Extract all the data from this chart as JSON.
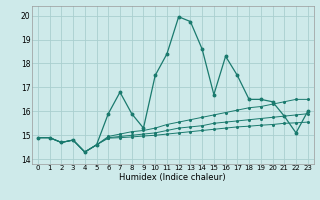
{
  "xlabel": "Humidex (Indice chaleur)",
  "bg_color": "#ceeaea",
  "grid_color": "#aacfcf",
  "line_color": "#1a7a6e",
  "xlim": [
    -0.5,
    23.5
  ],
  "ylim": [
    13.8,
    20.4
  ],
  "xtick_labels": [
    "0",
    "1",
    "2",
    "3",
    "4",
    "5",
    "6",
    "7",
    "8",
    "9",
    "10",
    "11",
    "12",
    "13",
    "14",
    "15",
    "16",
    "17",
    "18",
    "19",
    "20",
    "21",
    "22",
    "23"
  ],
  "ytick_vals": [
    14,
    15,
    16,
    17,
    18,
    19,
    20
  ],
  "series_main": [
    14.9,
    14.9,
    14.7,
    14.8,
    14.3,
    14.6,
    15.9,
    16.8,
    15.9,
    15.3,
    17.5,
    18.4,
    19.95,
    19.75,
    18.6,
    16.7,
    18.3,
    17.5,
    16.5,
    16.5,
    16.4,
    15.8,
    15.1,
    16.0
  ],
  "series_t1": [
    14.9,
    14.9,
    14.7,
    14.8,
    14.3,
    14.6,
    14.95,
    15.05,
    15.15,
    15.2,
    15.3,
    15.45,
    15.55,
    15.65,
    15.75,
    15.85,
    15.95,
    16.05,
    16.15,
    16.2,
    16.3,
    16.4,
    16.5,
    16.5
  ],
  "series_t2": [
    14.9,
    14.9,
    14.7,
    14.8,
    14.3,
    14.6,
    14.9,
    14.95,
    15.0,
    15.05,
    15.1,
    15.2,
    15.3,
    15.35,
    15.4,
    15.5,
    15.55,
    15.6,
    15.65,
    15.7,
    15.75,
    15.8,
    15.85,
    15.9
  ],
  "series_t3": [
    14.9,
    14.9,
    14.7,
    14.8,
    14.3,
    14.6,
    14.88,
    14.9,
    14.93,
    14.97,
    15.0,
    15.05,
    15.1,
    15.15,
    15.2,
    15.25,
    15.3,
    15.35,
    15.38,
    15.42,
    15.45,
    15.5,
    15.52,
    15.55
  ]
}
